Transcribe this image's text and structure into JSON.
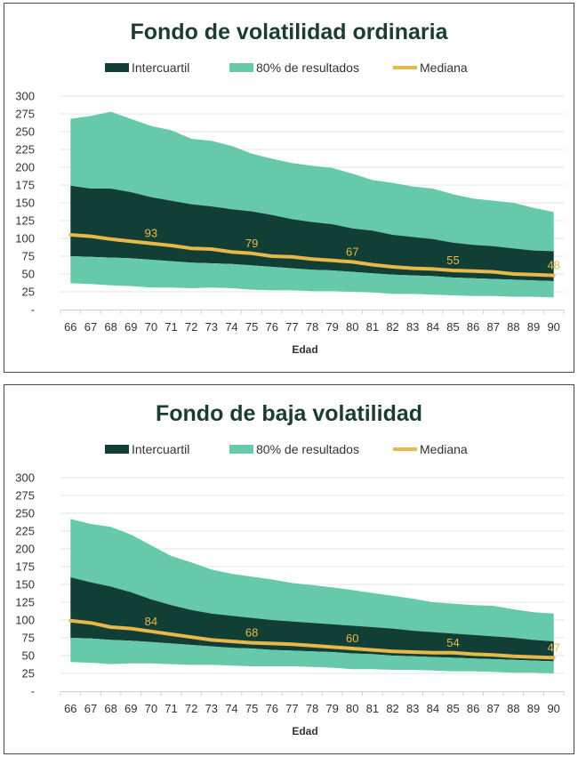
{
  "chart_data": [
    {
      "type": "area",
      "title": "Fondo de volatilidad ordinaria",
      "xlabel": "Edad",
      "ylabel": "",
      "ylim": [
        0,
        300
      ],
      "yticks": [
        "-",
        "25",
        "50",
        "75",
        "100",
        "125",
        "150",
        "175",
        "200",
        "225",
        "250",
        "275",
        "300"
      ],
      "legend": [
        "Intercuartil",
        "80% de resultados",
        "Mediana"
      ],
      "legend_position": "top",
      "grid": true,
      "colors": {
        "interquartile": "#123f35",
        "range80": "#66c9a9",
        "median": "#e8b84a"
      },
      "categories": [
        "66",
        "67",
        "68",
        "69",
        "70",
        "71",
        "72",
        "73",
        "74",
        "75",
        "76",
        "77",
        "78",
        "79",
        "80",
        "81",
        "82",
        "83",
        "84",
        "85",
        "86",
        "87",
        "88",
        "89",
        "90"
      ],
      "series": [
        {
          "name": "p10",
          "values": [
            37,
            36,
            34,
            33,
            31,
            31,
            30,
            31,
            30,
            28,
            27,
            27,
            26,
            26,
            25,
            24,
            22,
            22,
            21,
            20,
            19,
            19,
            18,
            18,
            17
          ]
        },
        {
          "name": "p25",
          "values": [
            75,
            74,
            73,
            72,
            70,
            68,
            66,
            65,
            64,
            62,
            60,
            58,
            56,
            55,
            53,
            51,
            49,
            48,
            47,
            45,
            44,
            43,
            42,
            41,
            40
          ]
        },
        {
          "name": "Mediana",
          "values": [
            105,
            103,
            99,
            96,
            93,
            90,
            86,
            85,
            81,
            79,
            75,
            74,
            71,
            69,
            67,
            63,
            60,
            58,
            57,
            55,
            54,
            53,
            50,
            49,
            48
          ]
        },
        {
          "name": "p75",
          "values": [
            174,
            170,
            170,
            165,
            158,
            153,
            148,
            145,
            141,
            138,
            133,
            127,
            123,
            120,
            114,
            111,
            105,
            102,
            99,
            94,
            91,
            89,
            86,
            83,
            82
          ]
        },
        {
          "name": "p90",
          "values": [
            268,
            272,
            278,
            268,
            258,
            252,
            240,
            237,
            230,
            219,
            212,
            206,
            202,
            199,
            191,
            182,
            178,
            173,
            170,
            162,
            156,
            153,
            150,
            143,
            137
          ]
        }
      ],
      "data_labels": [
        {
          "category": "70",
          "value": 93,
          "text": "93"
        },
        {
          "category": "75",
          "value": 79,
          "text": "79"
        },
        {
          "category": "80",
          "value": 67,
          "text": "67"
        },
        {
          "category": "85",
          "value": 55,
          "text": "55"
        },
        {
          "category": "90",
          "value": 48,
          "text": "48"
        }
      ]
    },
    {
      "type": "area",
      "title": "Fondo de baja volatilidad",
      "xlabel": "Edad",
      "ylabel": "",
      "ylim": [
        0,
        300
      ],
      "yticks": [
        "-",
        "25",
        "50",
        "75",
        "100",
        "125",
        "150",
        "175",
        "200",
        "225",
        "250",
        "275",
        "300"
      ],
      "legend": [
        "Intercuartil",
        "80% de resultados",
        "Mediana"
      ],
      "legend_position": "top",
      "grid": true,
      "colors": {
        "interquartile": "#123f35",
        "range80": "#66c9a9",
        "median": "#e8b84a"
      },
      "categories": [
        "66",
        "67",
        "68",
        "69",
        "70",
        "71",
        "72",
        "73",
        "74",
        "75",
        "76",
        "77",
        "78",
        "79",
        "80",
        "81",
        "82",
        "83",
        "84",
        "85",
        "86",
        "87",
        "88",
        "89",
        "90"
      ],
      "series": [
        {
          "name": "p10",
          "values": [
            41,
            40,
            38,
            39,
            39,
            38,
            37,
            37,
            36,
            35,
            35,
            35,
            34,
            33,
            31,
            31,
            30,
            30,
            29,
            28,
            28,
            27,
            26,
            26,
            25
          ]
        },
        {
          "name": "p25",
          "values": [
            75,
            74,
            72,
            71,
            69,
            67,
            65,
            63,
            61,
            60,
            58,
            57,
            56,
            55,
            53,
            52,
            50,
            49,
            48,
            47,
            46,
            45,
            44,
            43,
            42
          ]
        },
        {
          "name": "Mediana",
          "values": [
            99,
            96,
            90,
            88,
            84,
            80,
            76,
            72,
            70,
            68,
            67,
            66,
            64,
            62,
            60,
            58,
            56,
            55,
            54,
            54,
            52,
            51,
            49,
            48,
            47
          ]
        },
        {
          "name": "p75",
          "values": [
            160,
            153,
            147,
            139,
            129,
            121,
            114,
            109,
            106,
            103,
            100,
            98,
            96,
            94,
            92,
            90,
            88,
            85,
            83,
            81,
            79,
            77,
            75,
            72,
            70
          ]
        },
        {
          "name": "p90",
          "values": [
            242,
            235,
            231,
            220,
            205,
            190,
            181,
            171,
            165,
            161,
            157,
            152,
            149,
            146,
            142,
            138,
            134,
            130,
            125,
            123,
            121,
            120,
            115,
            111,
            109
          ]
        }
      ],
      "data_labels": [
        {
          "category": "70",
          "value": 84,
          "text": "84"
        },
        {
          "category": "75",
          "value": 68,
          "text": "68"
        },
        {
          "category": "80",
          "value": 60,
          "text": "60"
        },
        {
          "category": "85",
          "value": 54,
          "text": "54"
        },
        {
          "category": "90",
          "value": 47,
          "text": "47"
        }
      ]
    }
  ]
}
